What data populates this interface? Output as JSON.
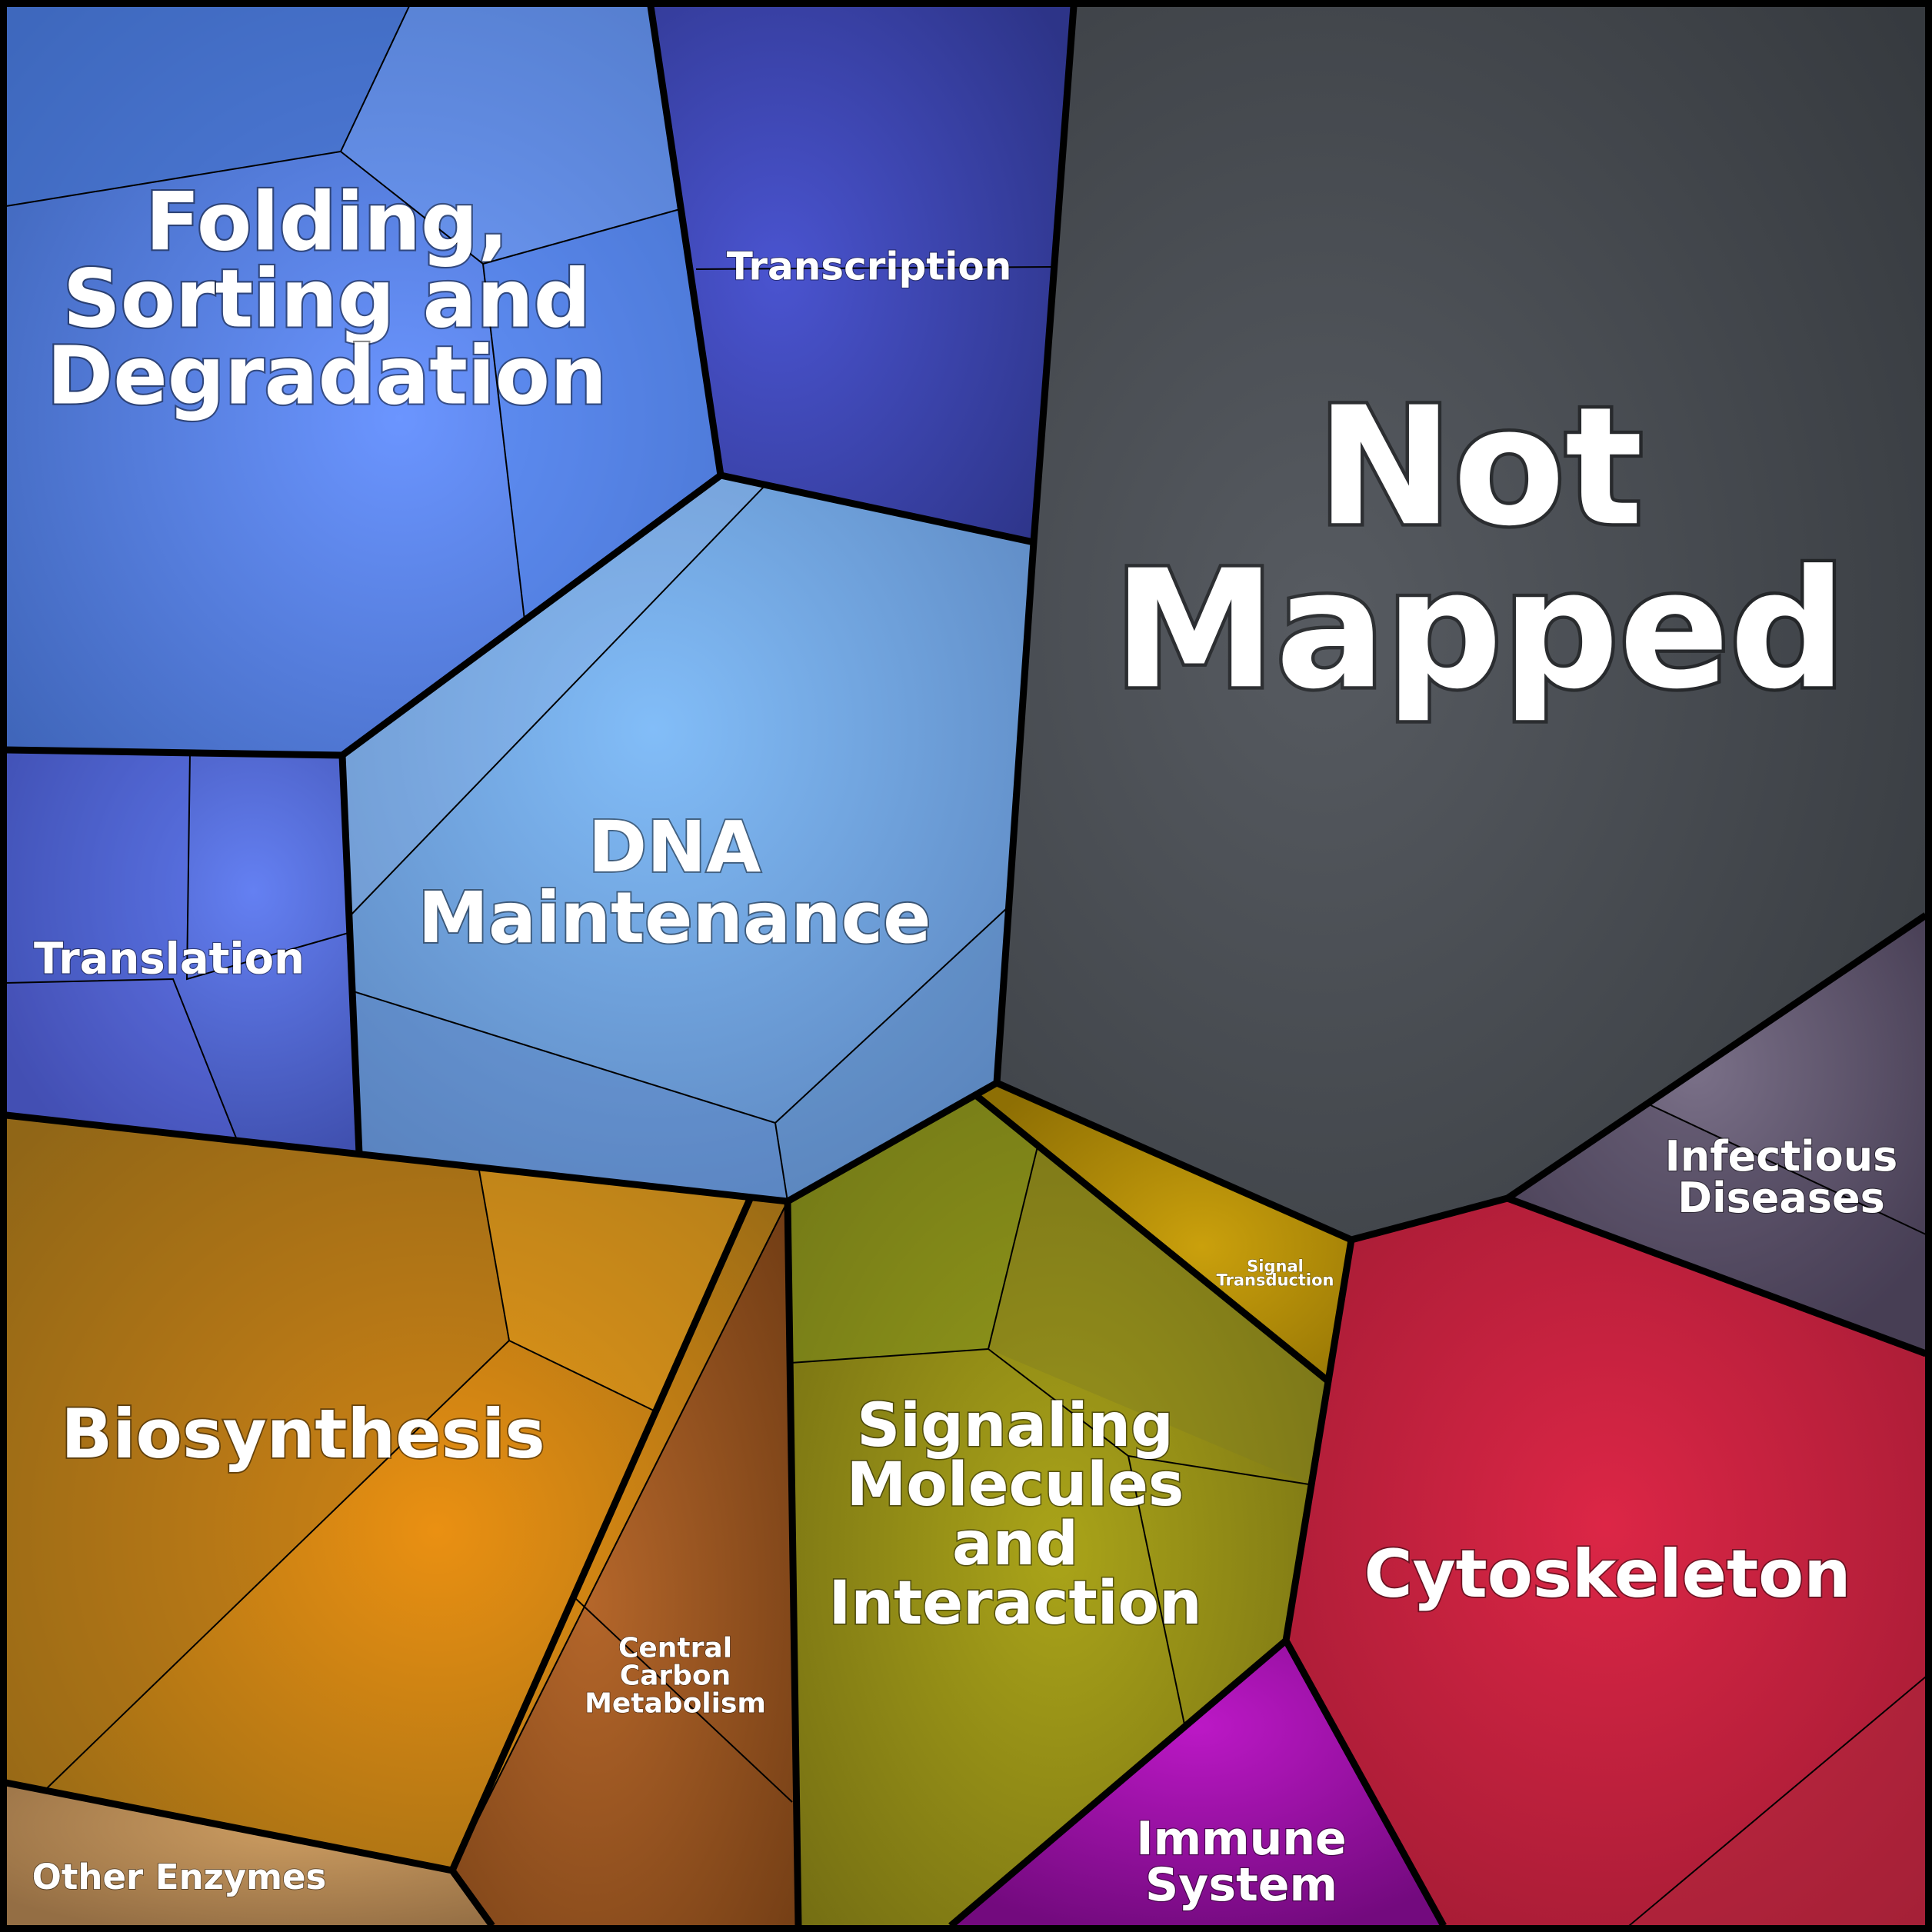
{
  "labels": {
    "folding": [
      "Folding,",
      "Sorting and",
      "Degradation"
    ],
    "transcription": [
      "Transcription"
    ],
    "not_mapped": [
      "Not",
      "Mapped"
    ],
    "dna": [
      "DNA",
      "Maintenance"
    ],
    "translation": [
      "Translation"
    ],
    "infectious": [
      "Infectious",
      "Diseases"
    ],
    "signal_transduction": [
      "Signal",
      "Transduction"
    ],
    "biosynthesis": [
      "Biosynthesis"
    ],
    "signaling": [
      "Signaling",
      "Molecules",
      "and",
      "Interaction"
    ],
    "cytoskeleton": [
      "Cytoskeleton"
    ],
    "central_carbon": [
      "Central",
      "Carbon",
      "Metabolism"
    ],
    "immune": [
      "Immune",
      "System"
    ],
    "other_enzymes": [
      "Other Enzymes"
    ]
  },
  "colors": {
    "folding": "#5b8be8",
    "transcription": "#3c45b6",
    "not_mapped": "#45484d",
    "dna": "#6fa3dc",
    "translation": "#4c62d6",
    "infectious": "#5c5268",
    "signal_transduction": "#b48e0a",
    "biosynthesis": "#c08420",
    "signaling": "#8f911c",
    "cytoskeleton": "#b81f37",
    "central_carbon": "#94501e",
    "immune": "#9b12a9",
    "other_enzymes": "#b08a55"
  }
}
